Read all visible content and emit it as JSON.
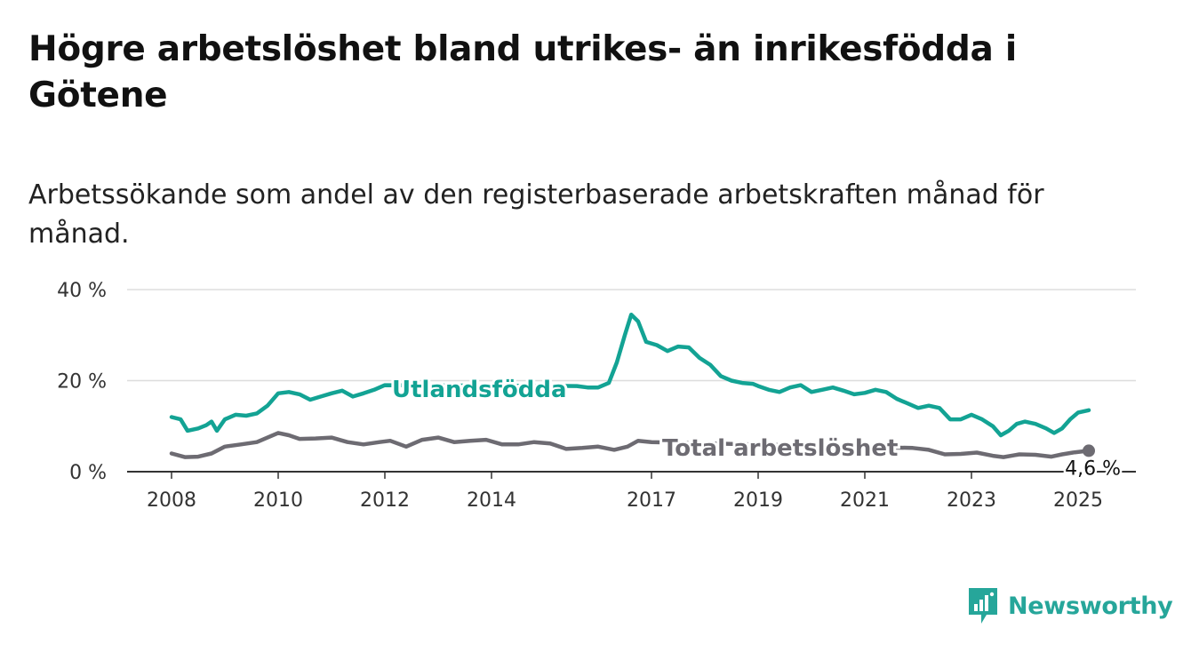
{
  "title": "Högre arbetslöshet bland utrikes- än inrikesfödda i Götene",
  "subtitle": "Arbetssökande som andel av den registerbaserade arbetskraften månad för månad.",
  "brand": "Newsworthy",
  "colors": {
    "foreign_born": "#13a394",
    "total": "#6d6b72",
    "grid": "#dddddd",
    "axis": "#333333",
    "brand": "#26a69a"
  },
  "chart_data": {
    "type": "line",
    "title": "Högre arbetslöshet bland utrikes- än inrikesfödda i Götene",
    "subtitle": "Arbetssökande som andel av den registerbaserade arbetskraften månad för månad.",
    "xlabel": "",
    "ylabel": "",
    "xlim": [
      2008.0,
      2025.2
    ],
    "ylim": [
      0,
      40
    ],
    "x_ticks": [
      2008,
      2010,
      2012,
      2014,
      2017,
      2019,
      2021,
      2023,
      2025
    ],
    "y_ticks": [
      {
        "value": 0,
        "label": "0 %"
      },
      {
        "value": 20,
        "label": "20 %"
      },
      {
        "value": 40,
        "label": "40 %"
      }
    ],
    "grid": true,
    "legend": "direct labels on lines",
    "end_label": "4,6 %",
    "series": [
      {
        "name": "Utlandsfödda",
        "color": "#13a394",
        "points": [
          [
            2008.0,
            12.0
          ],
          [
            2008.17,
            11.5
          ],
          [
            2008.3,
            9.0
          ],
          [
            2008.5,
            9.5
          ],
          [
            2008.65,
            10.2
          ],
          [
            2008.75,
            11.0
          ],
          [
            2008.85,
            9.0
          ],
          [
            2009.0,
            11.5
          ],
          [
            2009.2,
            12.5
          ],
          [
            2009.4,
            12.3
          ],
          [
            2009.6,
            12.8
          ],
          [
            2009.8,
            14.5
          ],
          [
            2010.0,
            17.2
          ],
          [
            2010.2,
            17.5
          ],
          [
            2010.4,
            17.0
          ],
          [
            2010.6,
            15.8
          ],
          [
            2010.8,
            16.5
          ],
          [
            2011.0,
            17.2
          ],
          [
            2011.2,
            17.8
          ],
          [
            2011.4,
            16.5
          ],
          [
            2011.6,
            17.2
          ],
          [
            2011.8,
            18.0
          ],
          [
            2012.0,
            19.0
          ],
          [
            2015.6,
            18.8
          ],
          [
            2015.8,
            18.5
          ],
          [
            2016.0,
            18.5
          ],
          [
            2016.2,
            19.5
          ],
          [
            2016.35,
            24.0
          ],
          [
            2016.5,
            30.0
          ],
          [
            2016.62,
            34.5
          ],
          [
            2016.75,
            33.0
          ],
          [
            2016.9,
            28.5
          ],
          [
            2017.1,
            27.8
          ],
          [
            2017.3,
            26.5
          ],
          [
            2017.5,
            27.5
          ],
          [
            2017.7,
            27.3
          ],
          [
            2017.9,
            25.0
          ],
          [
            2018.1,
            23.5
          ],
          [
            2018.3,
            21.0
          ],
          [
            2018.5,
            20.0
          ],
          [
            2018.7,
            19.5
          ],
          [
            2018.9,
            19.3
          ],
          [
            2019.0,
            18.8
          ],
          [
            2019.2,
            18.0
          ],
          [
            2019.4,
            17.5
          ],
          [
            2019.6,
            18.5
          ],
          [
            2019.8,
            19.0
          ],
          [
            2020.0,
            17.5
          ],
          [
            2020.2,
            18.0
          ],
          [
            2020.4,
            18.5
          ],
          [
            2020.6,
            17.8
          ],
          [
            2020.8,
            17.0
          ],
          [
            2021.0,
            17.3
          ],
          [
            2021.2,
            18.0
          ],
          [
            2021.4,
            17.5
          ],
          [
            2021.6,
            16.0
          ],
          [
            2021.8,
            15.0
          ],
          [
            2022.0,
            14.0
          ],
          [
            2022.2,
            14.5
          ],
          [
            2022.4,
            14.0
          ],
          [
            2022.6,
            11.5
          ],
          [
            2022.8,
            11.5
          ],
          [
            2023.0,
            12.5
          ],
          [
            2023.2,
            11.5
          ],
          [
            2023.4,
            10.0
          ],
          [
            2023.55,
            8.0
          ],
          [
            2023.7,
            9.0
          ],
          [
            2023.85,
            10.5
          ],
          [
            2024.0,
            11.0
          ],
          [
            2024.2,
            10.5
          ],
          [
            2024.4,
            9.5
          ],
          [
            2024.55,
            8.5
          ],
          [
            2024.7,
            9.5
          ],
          [
            2024.85,
            11.5
          ],
          [
            2025.0,
            13.0
          ],
          [
            2025.2,
            13.5
          ]
        ]
      },
      {
        "name": "Total arbetslöshet",
        "color": "#6d6b72",
        "points": [
          [
            2008.0,
            4.0
          ],
          [
            2008.25,
            3.2
          ],
          [
            2008.5,
            3.3
          ],
          [
            2008.75,
            4.0
          ],
          [
            2009.0,
            5.5
          ],
          [
            2009.3,
            6.0
          ],
          [
            2009.6,
            6.5
          ],
          [
            2009.8,
            7.5
          ],
          [
            2010.0,
            8.5
          ],
          [
            2010.2,
            8.0
          ],
          [
            2010.4,
            7.2
          ],
          [
            2010.7,
            7.3
          ],
          [
            2011.0,
            7.5
          ],
          [
            2011.3,
            6.5
          ],
          [
            2011.6,
            6.0
          ],
          [
            2011.9,
            6.5
          ],
          [
            2012.1,
            6.8
          ],
          [
            2012.4,
            5.5
          ],
          [
            2012.7,
            7.0
          ],
          [
            2013.0,
            7.5
          ],
          [
            2013.3,
            6.5
          ],
          [
            2013.6,
            6.8
          ],
          [
            2013.9,
            7.0
          ],
          [
            2014.2,
            6.0
          ],
          [
            2014.5,
            6.0
          ],
          [
            2014.8,
            6.5
          ],
          [
            2015.1,
            6.2
          ],
          [
            2015.4,
            5.0
          ],
          [
            2015.7,
            5.2
          ],
          [
            2016.0,
            5.5
          ],
          [
            2016.3,
            4.8
          ],
          [
            2016.55,
            5.5
          ],
          [
            2016.75,
            6.8
          ],
          [
            2017.0,
            6.5
          ],
          [
            2021.9,
            5.2
          ],
          [
            2022.2,
            4.8
          ],
          [
            2022.5,
            3.8
          ],
          [
            2022.8,
            3.9
          ],
          [
            2023.1,
            4.2
          ],
          [
            2023.4,
            3.5
          ],
          [
            2023.6,
            3.2
          ],
          [
            2023.9,
            3.8
          ],
          [
            2024.2,
            3.7
          ],
          [
            2024.5,
            3.3
          ],
          [
            2024.7,
            3.8
          ],
          [
            2024.9,
            4.2
          ],
          [
            2025.2,
            4.6
          ]
        ]
      }
    ]
  }
}
